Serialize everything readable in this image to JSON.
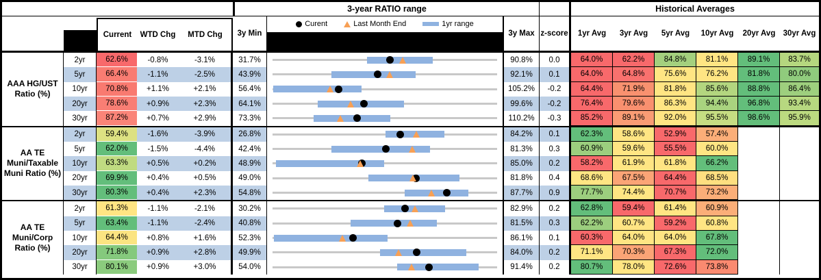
{
  "header": {
    "range_title": "3-year RATIO range",
    "hist_title": "Historical Averages",
    "legend": {
      "current": "Curent",
      "last_month": "Last Month End",
      "range": "1yr range"
    },
    "cols": {
      "current": "Current",
      "wtd": "WTD Chg",
      "mtd": "MTD Chg",
      "min": "3y Min",
      "max": "3y Max",
      "z": "z-score",
      "avgs": [
        "1yr Avg",
        "3yr Avg",
        "5yr Avg",
        "10yr Avg",
        "20yr Avg",
        "30yr Avg"
      ]
    }
  },
  "colors": {
    "row_alt_blue": "#BDD0E6",
    "range_bar_blue": "#8FB2E0",
    "track_gray": "#C8C8C8",
    "triangle_orange": "#F7A055",
    "dot_black": "#000000",
    "scale_red": "#F8696B",
    "scale_yellow": "#FFE583",
    "scale_green": "#63BE7B"
  },
  "chart_data": {
    "type": "table",
    "title": "3-year RATIO range",
    "legend_entries": [
      "Curent",
      "Last Month End",
      "1yr range"
    ],
    "columns": [
      "Current",
      "WTD Chg",
      "MTD Chg",
      "3y Min",
      "3y Max",
      "z-score",
      "1yr Avg",
      "3yr Avg",
      "5yr Avg",
      "10yr Avg",
      "20yr Avg",
      "30yr Avg"
    ],
    "groups": [
      {
        "label": "AAA HG/UST Ratio (%)",
        "rows": [
          {
            "tenor": "2yr",
            "current": "62.6%",
            "current_bg": "#F8696B",
            "wtd": "-0.8%",
            "mtd": "-3.1%",
            "min": "31.7%",
            "max": "90.8%",
            "z": "0.0",
            "min_v": 31.7,
            "max_v": 90.8,
            "cur_v": 62.6,
            "lme_v": 66.0,
            "bar_v": [
              56.5,
              73.8
            ],
            "avgs": [
              "64.0%",
              "62.2%",
              "84.8%",
              "81.1%",
              "89.1%",
              "83.7%"
            ],
            "avg_bgs": [
              "#F8696B",
              "#F8696B",
              "#A4D07E",
              "#FFE583",
              "#63BE7B",
              "#B5D77F"
            ]
          },
          {
            "tenor": "5yr",
            "current": "66.4%",
            "current_bg": "#F97C72",
            "wtd": "-1.1%",
            "mtd": "-2.5%",
            "min": "43.9%",
            "max": "92.1%",
            "z": "0.1",
            "min_v": 43.9,
            "max_v": 92.1,
            "cur_v": 66.4,
            "lme_v": 69.1,
            "bar_v": [
              56.5,
              74.6
            ],
            "avgs": [
              "64.0%",
              "64.8%",
              "75.6%",
              "76.2%",
              "81.8%",
              "80.0%"
            ],
            "avg_bgs": [
              "#F8696B",
              "#F8716E",
              "#FFE583",
              "#FFE583",
              "#63BE7B",
              "#90CB7D"
            ]
          },
          {
            "tenor": "10yr",
            "current": "70.8%",
            "current_bg": "#F97A70",
            "wtd": "+1.1%",
            "mtd": "+2.1%",
            "min": "56.4%",
            "max": "105.2%",
            "z": "-0.2",
            "min_v": 56.4,
            "max_v": 105.2,
            "cur_v": 70.8,
            "lme_v": 68.9,
            "bar_v": [
              56.6,
              75.7
            ],
            "avgs": [
              "64.4%",
              "71.9%",
              "81.8%",
              "85.6%",
              "88.8%",
              "86.4%"
            ],
            "avg_bgs": [
              "#F8696B",
              "#F9916F",
              "#FFE583",
              "#B3D67F",
              "#63BE7B",
              "#9ECF7E"
            ]
          },
          {
            "tenor": "20yr",
            "current": "78.6%",
            "current_bg": "#F97E74",
            "wtd": "+0.9%",
            "mtd": "+2.3%",
            "min": "64.1%",
            "max": "99.6%",
            "z": "-0.2",
            "min_v": 64.1,
            "max_v": 99.6,
            "cur_v": 78.6,
            "lme_v": 76.5,
            "bar_v": [
              71.2,
              84.9
            ],
            "avgs": [
              "76.4%",
              "79.6%",
              "86.3%",
              "94.4%",
              "96.8%",
              "93.4%"
            ],
            "avg_bgs": [
              "#F8696B",
              "#F9906F",
              "#FFE583",
              "#A9D37F",
              "#63BE7B",
              "#B7D880"
            ]
          },
          {
            "tenor": "30yr",
            "current": "87.2%",
            "current_bg": "#FA8478",
            "wtd": "+0.7%",
            "mtd": "+2.9%",
            "min": "73.3%",
            "max": "110.2%",
            "z": "-0.3",
            "min_v": 73.3,
            "max_v": 110.2,
            "cur_v": 87.2,
            "lme_v": 84.5,
            "bar_v": [
              80.1,
              92.6
            ],
            "avgs": [
              "85.2%",
              "89.1%",
              "92.0%",
              "95.5%",
              "98.6%",
              "95.9%"
            ],
            "avg_bgs": [
              "#F8696B",
              "#FA9C74",
              "#FFE583",
              "#C6DD82",
              "#63BE7B",
              "#BCDA80"
            ]
          }
        ]
      },
      {
        "label": "AA TE Muni/Taxable Muni Ratio (%)",
        "rows": [
          {
            "tenor": "2yr",
            "current": "59.4%",
            "current_bg": "#DDE182",
            "wtd": "-1.6%",
            "mtd": "-3.9%",
            "min": "26.8%",
            "max": "84.2%",
            "z": "0.1",
            "min_v": 26.8,
            "max_v": 84.2,
            "cur_v": 59.4,
            "lme_v": 63.6,
            "bar_v": [
              55.7,
              70.7
            ],
            "avgs": [
              "62.3%",
              "58.6%",
              "52.9%",
              "57.4%",
              null,
              null
            ],
            "avg_bgs": [
              "#63BE7B",
              "#FFE583",
              "#F8696B",
              "#FBAE78",
              null,
              null
            ]
          },
          {
            "tenor": "5yr",
            "current": "62.0%",
            "current_bg": "#63BE7B",
            "wtd": "-1.5%",
            "mtd": "-4.4%",
            "min": "42.4%",
            "max": "81.3%",
            "z": "0.3",
            "min_v": 42.4,
            "max_v": 81.3,
            "cur_v": 62.0,
            "lme_v": 66.6,
            "bar_v": [
              52.6,
              69.7
            ],
            "avgs": [
              "60.9%",
              "59.6%",
              "55.5%",
              "60.0%",
              null,
              null
            ],
            "avg_bgs": [
              "#9CCE7E",
              "#FFE583",
              "#F8696B",
              "#FFE583",
              null,
              null
            ]
          },
          {
            "tenor": "10yr",
            "current": "63.3%",
            "current_bg": "#C0DB81",
            "wtd": "+0.5%",
            "mtd": "+0.2%",
            "min": "48.9%",
            "max": "85.0%",
            "z": "0.2",
            "min_v": 48.9,
            "max_v": 85.0,
            "cur_v": 63.3,
            "lme_v": 63.0,
            "bar_v": [
              49.4,
              66.8
            ],
            "avgs": [
              "58.2%",
              "61.9%",
              "61.8%",
              "66.2%",
              null,
              null
            ],
            "avg_bgs": [
              "#F8696B",
              "#FFE583",
              "#FFE583",
              "#63BE7B",
              null,
              null
            ]
          },
          {
            "tenor": "20yr",
            "current": "69.9%",
            "current_bg": "#63BE7B",
            "wtd": "+0.4%",
            "mtd": "+0.5%",
            "min": "49.0%",
            "max": "81.8%",
            "z": "0.4",
            "min_v": 49.0,
            "max_v": 81.8,
            "cur_v": 69.9,
            "lme_v": 69.5,
            "bar_v": [
              63.0,
              76.3
            ],
            "avgs": [
              "68.6%",
              "67.5%",
              "64.4%",
              "68.5%",
              null,
              null
            ],
            "avg_bgs": [
              "#FFE583",
              "#FBA476",
              "#F8696B",
              "#FEDF80",
              null,
              null
            ]
          },
          {
            "tenor": "30yr",
            "current": "80.3%",
            "current_bg": "#63BE7B",
            "wtd": "+0.4%",
            "mtd": "+2.3%",
            "min": "54.8%",
            "max": "87.7%",
            "z": "0.9",
            "min_v": 54.8,
            "max_v": 87.7,
            "cur_v": 80.3,
            "lme_v": 78.1,
            "bar_v": [
              74.2,
              83.5
            ],
            "avgs": [
              "77.7%",
              "74.4%",
              "70.7%",
              "73.2%",
              null,
              null
            ],
            "avg_bgs": [
              "#9CCE7E",
              "#FFE583",
              "#F8696B",
              "#FBAE78",
              null,
              null
            ]
          }
        ]
      },
      {
        "label": "AA TE Muni/Corp Ratio (%)",
        "rows": [
          {
            "tenor": "2yr",
            "current": "61.3%",
            "current_bg": "#FFE583",
            "wtd": "-1.1%",
            "mtd": "-2.1%",
            "min": "30.2%",
            "max": "82.9%",
            "z": "0.2",
            "min_v": 30.2,
            "max_v": 82.9,
            "cur_v": 61.3,
            "lme_v": 63.7,
            "bar_v": [
              56.4,
              70.7
            ],
            "avgs": [
              "62.8%",
              "59.4%",
              "61.4%",
              "60.9%",
              null,
              null
            ],
            "avg_bgs": [
              "#63BE7B",
              "#F8696B",
              "#FFE583",
              "#FBAE78",
              null,
              null
            ]
          },
          {
            "tenor": "5yr",
            "current": "63.4%",
            "current_bg": "#63BE7B",
            "wtd": "-1.1%",
            "mtd": "-2.4%",
            "min": "40.8%",
            "max": "81.5%",
            "z": "0.3",
            "min_v": 40.8,
            "max_v": 81.5,
            "cur_v": 63.4,
            "lme_v": 65.8,
            "bar_v": [
              55.0,
              70.6
            ],
            "avgs": [
              "62.2%",
              "60.7%",
              "59.2%",
              "60.8%",
              null,
              null
            ],
            "avg_bgs": [
              "#9CCE7E",
              "#FFE583",
              "#F8696B",
              "#FFE583",
              null,
              null
            ]
          },
          {
            "tenor": "10yr",
            "current": "64.4%",
            "current_bg": "#FBE481",
            "wtd": "+0.8%",
            "mtd": "+1.6%",
            "min": "52.3%",
            "max": "86.1%",
            "z": "0.1",
            "min_v": 52.3,
            "max_v": 86.1,
            "cur_v": 64.4,
            "lme_v": 62.9,
            "bar_v": [
              52.5,
              69.6
            ],
            "avgs": [
              "60.3%",
              "64.0%",
              "64.0%",
              "67.8%",
              null,
              null
            ],
            "avg_bgs": [
              "#F8696B",
              "#FFE583",
              "#FFE583",
              "#63BE7B",
              null,
              null
            ]
          },
          {
            "tenor": "20yr",
            "current": "71.8%",
            "current_bg": "#85C97D",
            "wtd": "+0.9%",
            "mtd": "+2.8%",
            "min": "49.9%",
            "max": "84.0%",
            "z": "0.2",
            "min_v": 49.9,
            "max_v": 84.0,
            "cur_v": 71.8,
            "lme_v": 69.1,
            "bar_v": [
              66.2,
              79.3
            ],
            "avgs": [
              "71.1%",
              "70.3%",
              "67.3%",
              "72.0%",
              null,
              null
            ],
            "avg_bgs": [
              "#FFE583",
              "#FBA476",
              "#F8696B",
              "#63BE7B",
              null,
              null
            ]
          },
          {
            "tenor": "30yr",
            "current": "80.1%",
            "current_bg": "#8BCB7D",
            "wtd": "+0.9%",
            "mtd": "+3.0%",
            "min": "54.0%",
            "max": "91.4%",
            "z": "0.2",
            "min_v": 54.0,
            "max_v": 91.4,
            "cur_v": 80.1,
            "lme_v": 77.2,
            "bar_v": [
              74.7,
              88.3
            ],
            "avgs": [
              "80.7%",
              "78.0%",
              "72.6%",
              "73.8%",
              null,
              null
            ],
            "avg_bgs": [
              "#63BE7B",
              "#FFE583",
              "#F8696B",
              "#FA8A70",
              null,
              null
            ]
          }
        ]
      }
    ]
  }
}
